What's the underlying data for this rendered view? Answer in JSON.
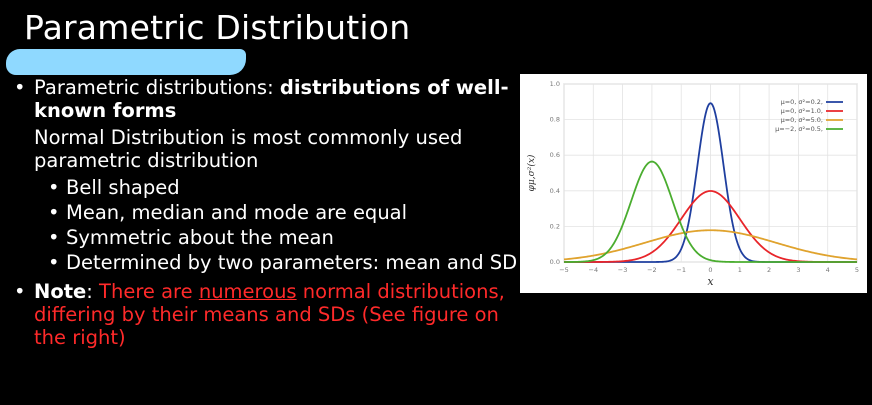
{
  "slide": {
    "title": "Parametric Distribution"
  },
  "bullets": {
    "b1_normal": "Parametric distributions: ",
    "b1_bold": "distributions of well-known forms",
    "b2_hidden": "Normal Distribution",
    "b2_rest": " is most commonly used parametric distribution",
    "subs": [
      "Bell shaped",
      "Mean, median and mode are equal",
      "Symmetric about the mean",
      "Determined by two parameters: mean and SD"
    ],
    "note_label": "Note",
    "note_colon": ": ",
    "note_red_1": "There are ",
    "note_red_ul": "numerous",
    "note_red_2": " normal distributions, differing by their means and SDs (See figure on the right)"
  },
  "colors": {
    "background": "#000000",
    "text": "#ffffff",
    "note_red": "#ff2a2a",
    "redaction": "#8fd9ff"
  },
  "chart_data": {
    "type": "line",
    "title": "",
    "xlabel": "x",
    "ylabel": "φμ,σ²(x)",
    "xlim": [
      -5,
      5
    ],
    "ylim": [
      0,
      1.0
    ],
    "xticks": [
      -5,
      -4,
      -3,
      -2,
      -1,
      0,
      1,
      2,
      3,
      4,
      5
    ],
    "yticks": [
      0.0,
      0.2,
      0.4,
      0.6,
      0.8,
      1.0
    ],
    "grid": true,
    "legend_position": "top-right",
    "series": [
      {
        "name": "μ=0,  σ²=0.2,",
        "mu": 0,
        "var": 0.2,
        "color": "#1f3f9f"
      },
      {
        "name": "μ=0,  σ²=1.0,",
        "mu": 0,
        "var": 1.0,
        "color": "#e8252a"
      },
      {
        "name": "μ=0,  σ²=5.0,",
        "mu": 0,
        "var": 5.0,
        "color": "#e0a32e"
      },
      {
        "name": "μ=−2, σ²=0.5,",
        "mu": -2,
        "var": 0.5,
        "color": "#4aad2f"
      }
    ]
  }
}
